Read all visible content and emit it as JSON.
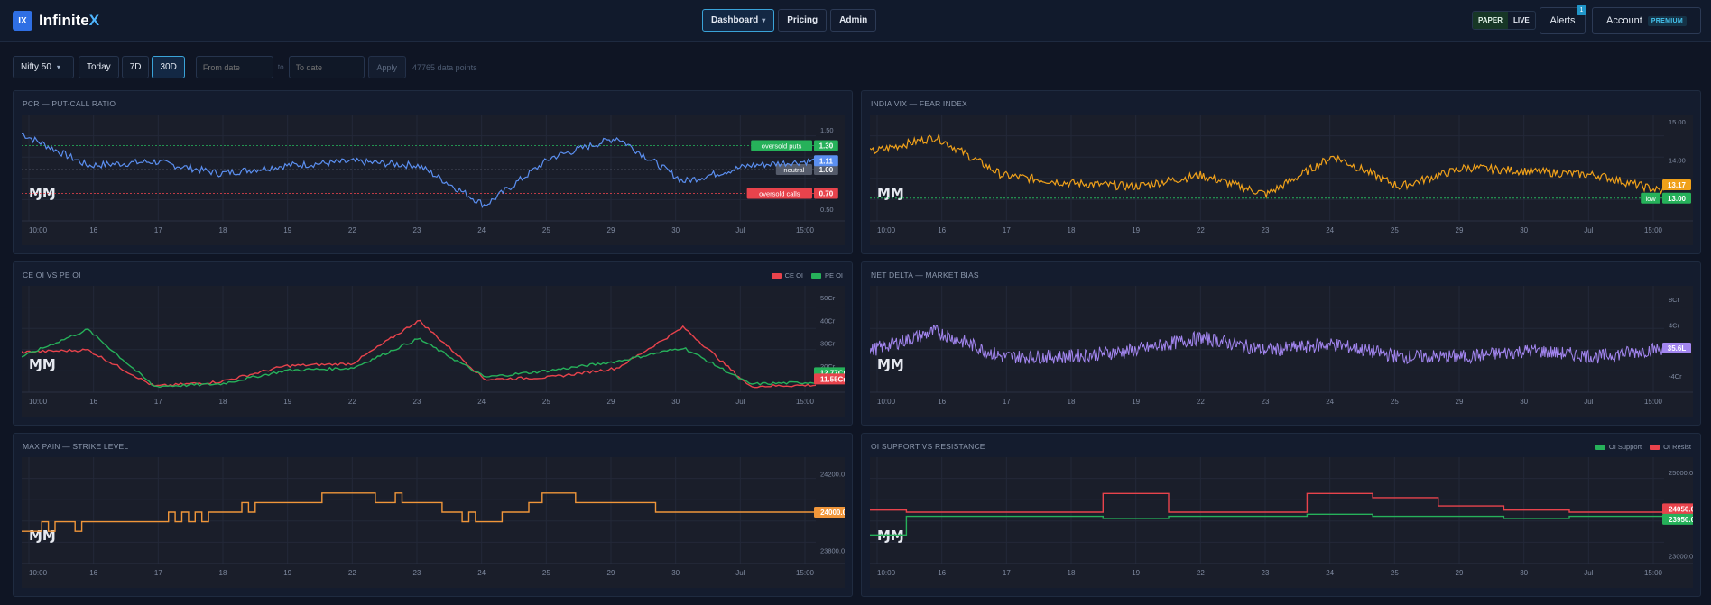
{
  "app": {
    "logo_mark": "IX",
    "name_prefix": "Infinite",
    "name_suffix": "X"
  },
  "nav": {
    "dashboard": "Dashboard",
    "pricing": "Pricing",
    "admin": "Admin"
  },
  "header_right": {
    "paper": "PAPER",
    "live": "LIVE",
    "alerts": "Alerts",
    "alerts_count": "1",
    "account": "Account",
    "plan": "PREMIUM"
  },
  "filters": {
    "symbol": "Nifty 50",
    "today": "Today",
    "range_7d": "7D",
    "range_30d": "30D",
    "from_placeholder": "From date",
    "to_sep": "to",
    "to_placeholder": "To date",
    "apply": "Apply",
    "data_points": "47765 data points"
  },
  "time_axis": [
    "10:00",
    "16",
    "17",
    "18",
    "19",
    "22",
    "23",
    "24",
    "25",
    "29",
    "30",
    "Jul",
    "15:00"
  ],
  "colors": {
    "pcr": "#5b8ff0",
    "vix": "#f0a11a",
    "ce": "#e8434c",
    "pe": "#26b15a",
    "delta": "#a386f0",
    "maxpain": "#f0963a",
    "support": "#26b15a",
    "resist": "#e8434c"
  },
  "panels": {
    "pcr": {
      "title": "PCR — PUT-CALL RATIO",
      "y_ticks": [
        "1.50",
        "0.50"
      ],
      "lines": [
        {
          "label": "oversold puts",
          "value": "1.30"
        },
        {
          "label": "neutral",
          "value": "1.00"
        },
        {
          "label": "oversold calls",
          "value": "0.70"
        }
      ],
      "last": "1.11"
    },
    "vix": {
      "title": "INDIA VIX — FEAR INDEX",
      "y_ticks": [
        "15.00",
        "14.00"
      ],
      "line_label": "low",
      "line_value": "13.00",
      "last": "13.17"
    },
    "ceoi": {
      "title": "CE OI VS PE OI",
      "legend": [
        "CE OI",
        "PE OI"
      ],
      "y_ticks": [
        "50Cr",
        "40Cr",
        "30Cr",
        "20Cr"
      ],
      "last_pe": "12.77Cr",
      "last_ce": "11.55Cr"
    },
    "delta": {
      "title": "NET DELTA — MARKET BIAS",
      "y_ticks": [
        "8Cr",
        "4Cr",
        "-4Cr"
      ],
      "last": "35.6L"
    },
    "maxpain": {
      "title": "MAX PAIN — STRIKE LEVEL",
      "y_ticks": [
        "24200.00",
        "23800.00"
      ],
      "last": "24000.00"
    },
    "support": {
      "title": "OI SUPPORT VS RESISTANCE",
      "legend": [
        "OI Support",
        "OI Resist"
      ],
      "y_ticks": [
        "25000.00",
        "23000.00"
      ],
      "last_resist": "24050.00",
      "last_support": "23950.00"
    }
  },
  "chart_data": [
    {
      "type": "line",
      "title": "PCR — PUT-CALL RATIO",
      "x": [
        "10:00",
        "16",
        "17",
        "18",
        "19",
        "22",
        "23",
        "24",
        "25",
        "29",
        "30",
        "Jul",
        "15:00"
      ],
      "series": [
        {
          "values": [
            1.45,
            1.05,
            1.1,
            0.95,
            1.05,
            1.1,
            1.05,
            0.55,
            1.15,
            1.4,
            0.85,
            1.05,
            1.11
          ]
        }
      ],
      "ylim": [
        0.4,
        1.6
      ],
      "hlines": [
        1.3,
        1.0,
        0.7
      ]
    },
    {
      "type": "line",
      "title": "INDIA VIX — FEAR INDEX",
      "x": [
        "10:00",
        "16",
        "17",
        "18",
        "19",
        "22",
        "23",
        "24",
        "25",
        "29",
        "30",
        "Jul",
        "15:00"
      ],
      "series": [
        {
          "values": [
            14.2,
            14.6,
            13.6,
            13.4,
            13.3,
            13.6,
            13.1,
            14.1,
            13.3,
            13.8,
            13.7,
            13.6,
            13.17
          ]
        }
      ],
      "ylim": [
        12.5,
        15.0
      ],
      "hlines": [
        13.0
      ]
    },
    {
      "type": "line",
      "title": "CE OI VS PE OI",
      "x": [
        "10:00",
        "16",
        "17",
        "18",
        "19",
        "22",
        "23",
        "24",
        "25",
        "29",
        "30",
        "Jul",
        "15:00"
      ],
      "series": [
        {
          "name": "CE OI",
          "values": [
            26,
            27,
            11,
            13,
            20,
            21,
            40,
            14,
            15,
            19,
            37,
            11,
            11.55
          ]
        },
        {
          "name": "PE OI",
          "values": [
            24,
            36,
            11,
            12,
            18,
            19,
            32,
            15,
            18,
            22,
            28,
            12,
            12.77
          ]
        }
      ],
      "ylim": [
        10,
        52
      ]
    },
    {
      "type": "line",
      "title": "NET DELTA — MARKET BIAS",
      "x": [
        "10:00",
        "16",
        "17",
        "18",
        "19",
        "22",
        "23",
        "24",
        "25",
        "29",
        "30",
        "Jul",
        "15:00"
      ],
      "series": [
        {
          "values": [
            0,
            3,
            -1,
            -1,
            0,
            2,
            0,
            1,
            -1,
            -1,
            0,
            -1,
            0.36
          ]
        }
      ],
      "ylim": [
        -6,
        9
      ]
    },
    {
      "type": "line",
      "title": "MAX PAIN — STRIKE LEVEL",
      "x": [
        "10:00",
        "16",
        "17",
        "18",
        "19",
        "22",
        "23",
        "24",
        "25",
        "29",
        "30",
        "Jul",
        "15:00"
      ],
      "series": [
        {
          "values": [
            23900,
            23950,
            23950,
            24000,
            24050,
            24100,
            24050,
            23950,
            24100,
            24050,
            24000,
            24000,
            24000
          ]
        }
      ],
      "ylim": [
        23750,
        24250
      ]
    },
    {
      "type": "line",
      "title": "OI SUPPORT VS RESISTANCE",
      "x": [
        "10:00",
        "16",
        "17",
        "18",
        "19",
        "22",
        "23",
        "24",
        "25",
        "29",
        "30",
        "Jul",
        "15:00"
      ],
      "series": [
        {
          "name": "OI Support",
          "values": [
            23500,
            23950,
            23950,
            23950,
            23900,
            23950,
            23950,
            24000,
            23950,
            23950,
            23900,
            23950,
            23950
          ]
        },
        {
          "name": "OI Resist",
          "values": [
            24100,
            24050,
            24050,
            24050,
            24500,
            24050,
            24050,
            24500,
            24400,
            24200,
            24100,
            24050,
            24050
          ]
        }
      ],
      "ylim": [
        22900,
        25200
      ]
    }
  ]
}
